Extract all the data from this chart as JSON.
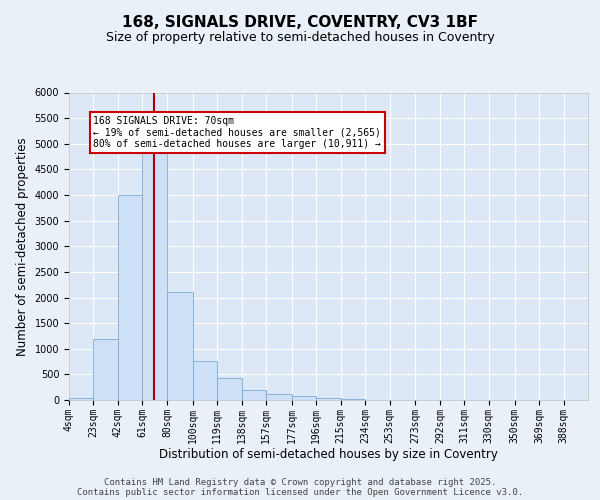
{
  "title_line1": "168, SIGNALS DRIVE, COVENTRY, CV3 1BF",
  "title_line2": "Size of property relative to semi-detached houses in Coventry",
  "xlabel": "Distribution of semi-detached houses by size in Coventry",
  "ylabel": "Number of semi-detached properties",
  "bar_color": "#cde0f5",
  "bar_edge_color": "#7aadd4",
  "vline_color": "#aa0000",
  "vline_x": 70,
  "annotation_text": "168 SIGNALS DRIVE: 70sqm\n← 19% of semi-detached houses are smaller (2,565)\n80% of semi-detached houses are larger (10,911) →",
  "annotation_box_color": "#ffffff",
  "annotation_box_edge": "#cc0000",
  "footer_text": "Contains HM Land Registry data © Crown copyright and database right 2025.\nContains public sector information licensed under the Open Government Licence v3.0.",
  "categories": [
    "4sqm",
    "23sqm",
    "42sqm",
    "61sqm",
    "80sqm",
    "100sqm",
    "119sqm",
    "138sqm",
    "157sqm",
    "177sqm",
    "196sqm",
    "215sqm",
    "234sqm",
    "253sqm",
    "273sqm",
    "292sqm",
    "311sqm",
    "330sqm",
    "350sqm",
    "369sqm",
    "388sqm"
  ],
  "bin_edges": [
    4,
    23,
    42,
    61,
    80,
    100,
    119,
    138,
    157,
    177,
    196,
    215,
    234,
    253,
    273,
    292,
    311,
    330,
    350,
    369,
    388
  ],
  "bar_heights": [
    30,
    1200,
    4000,
    4900,
    2100,
    760,
    430,
    200,
    120,
    80,
    40,
    15,
    8,
    4,
    2,
    1,
    0,
    0,
    0,
    0,
    0
  ],
  "ylim": [
    0,
    6000
  ],
  "yticks": [
    0,
    500,
    1000,
    1500,
    2000,
    2500,
    3000,
    3500,
    4000,
    4500,
    5000,
    5500,
    6000
  ],
  "background_color": "#eaf0f8",
  "plot_background": "#dce8f5",
  "grid_color": "#ffffff",
  "title_fontsize": 11,
  "subtitle_fontsize": 9,
  "axis_label_fontsize": 8.5,
  "tick_fontsize": 7,
  "footer_fontsize": 6.5
}
